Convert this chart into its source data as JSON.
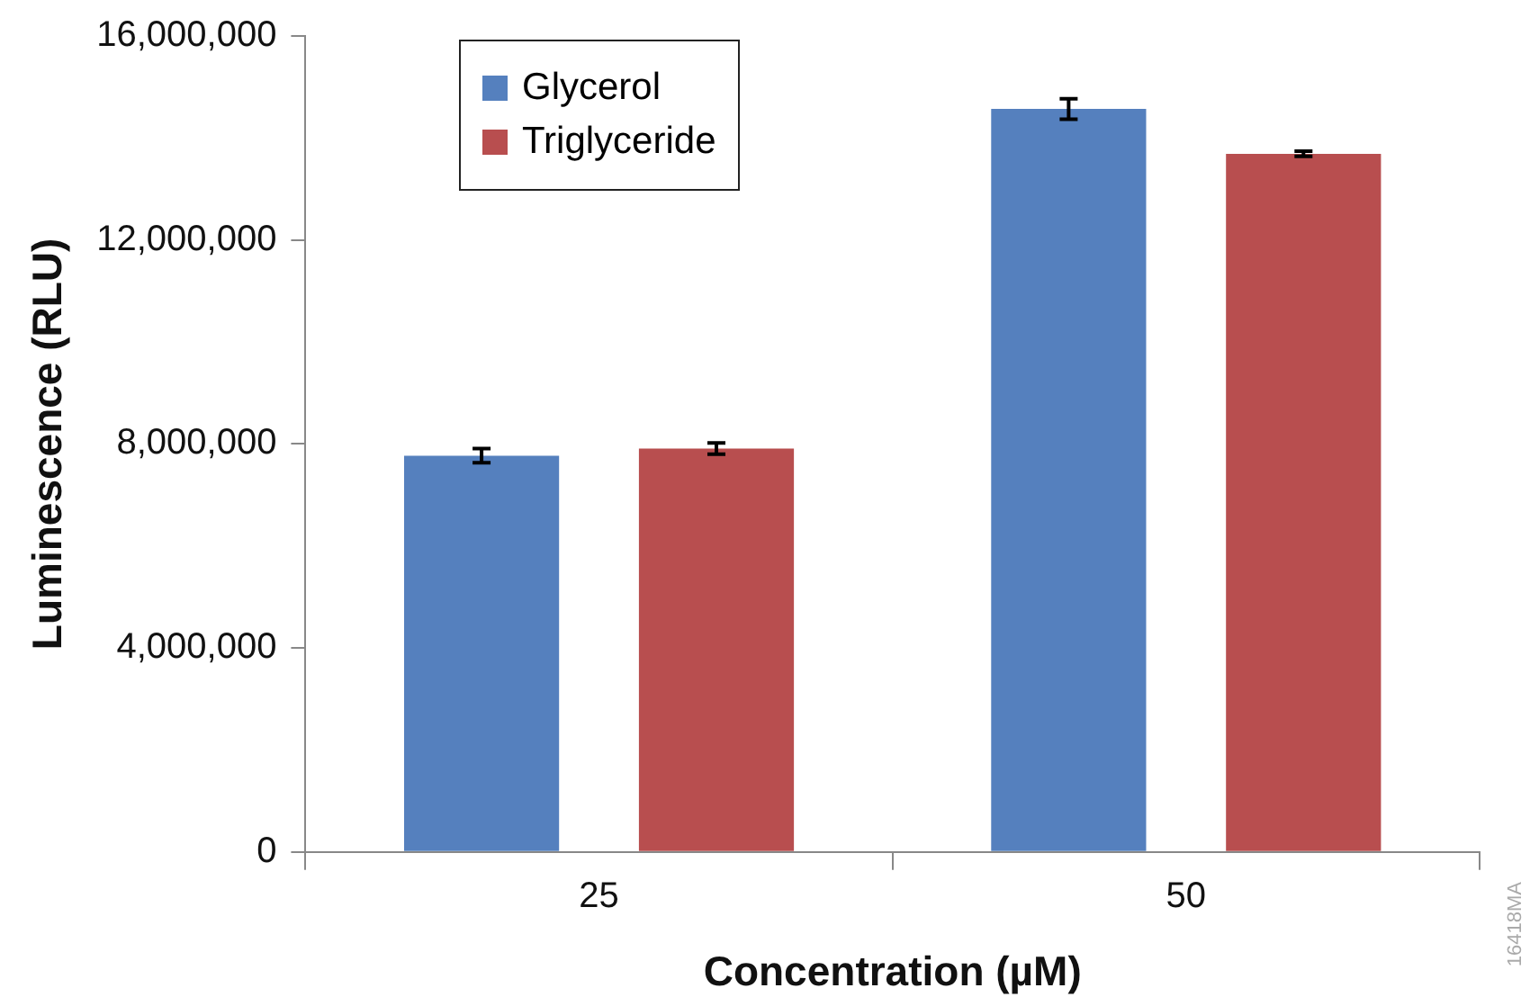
{
  "chart_data": {
    "type": "bar",
    "xlabel": "Concentration (µM)",
    "ylabel": "Luminescence (RLU)",
    "categories": [
      "25",
      "50"
    ],
    "series": [
      {
        "name": "Glycerol",
        "color": "#5580be",
        "values": [
          7770000,
          14570000
        ],
        "errors": [
          140000,
          200000
        ]
      },
      {
        "name": "Triglyceride",
        "color": "#b84e4f",
        "values": [
          7910000,
          13690000
        ],
        "errors": [
          110000,
          50000
        ]
      }
    ],
    "ylim": [
      0,
      16000000
    ],
    "yticks": [
      {
        "value": 0,
        "label": "0"
      },
      {
        "value": 4000000,
        "label": "4,000,000"
      },
      {
        "value": 8000000,
        "label": "8,000,000"
      },
      {
        "value": 12000000,
        "label": "12,000,000"
      },
      {
        "value": 16000000,
        "label": "16,000,000"
      }
    ],
    "grid": false,
    "legend": "top left",
    "annotations": [
      "16418MA"
    ]
  }
}
